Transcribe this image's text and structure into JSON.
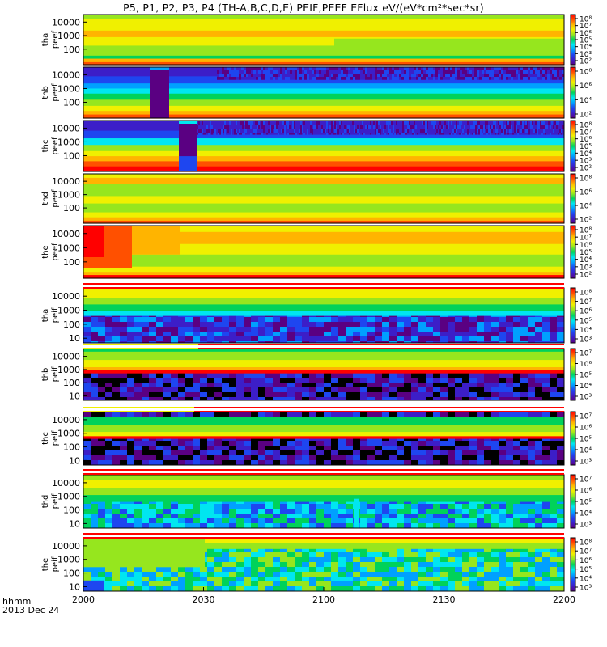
{
  "title": "P5, P1, P2, P3, P4 (TH-A,B,C,D,E) PEIF,PEEF EFlux eV/(eV*cm²*sec*sr)",
  "footer": {
    "var_label": "hhmm",
    "date_label": "2013 Dec 24"
  },
  "colormap": [
    "#ffffff",
    "#000000",
    "#5a0082",
    "#3c1ec8",
    "#1e46f0",
    "#00a0ff",
    "#00e6f0",
    "#00d25a",
    "#96e61e",
    "#f0f000",
    "#ffb400",
    "#ff5000",
    "#ff0000",
    "#ffffff"
  ],
  "chart_data": {
    "type": "heatmap",
    "x_ticks": [
      "2000",
      "2030",
      "2100",
      "2130",
      "2200"
    ],
    "x_range_minutes": [
      0,
      120
    ],
    "panels": [
      {
        "label": [
          "tha",
          "peef"
        ],
        "y_ticks": [
          "10000",
          "1000",
          "100"
        ],
        "cbar_ticks": [
          "10⁸",
          "10⁷",
          "10⁶",
          "10⁵",
          "10⁴",
          "10³",
          "10²"
        ],
        "cbar_range": [
          2,
          8
        ]
      },
      {
        "label": [
          "thb",
          "peef"
        ],
        "y_ticks": [
          "10000",
          "1000",
          "100"
        ],
        "cbar_ticks": [
          "10⁸",
          "10⁶",
          "10⁴",
          "10²"
        ],
        "cbar_range": [
          2,
          8
        ]
      },
      {
        "label": [
          "thc",
          "peef"
        ],
        "y_ticks": [
          "10000",
          "1000",
          "100"
        ],
        "cbar_ticks": [
          "10⁸",
          "10⁷",
          "10⁶",
          "10⁵",
          "10⁴",
          "10³",
          "10²"
        ],
        "cbar_range": [
          2,
          8
        ]
      },
      {
        "label": [
          "thd",
          "peef"
        ],
        "y_ticks": [
          "10000",
          "1000",
          "100"
        ],
        "cbar_ticks": [
          "10⁸",
          "10⁶",
          "10⁴",
          "10²"
        ],
        "cbar_range": [
          2,
          8
        ]
      },
      {
        "label": [
          "the",
          "peef"
        ],
        "y_ticks": [
          "10000",
          "1000",
          "100"
        ],
        "cbar_ticks": [
          "10⁸",
          "10⁷",
          "10⁶",
          "10⁵",
          "10⁴",
          "10³",
          "10²"
        ],
        "cbar_range": [
          2,
          8
        ]
      },
      {
        "label": [
          "tha",
          "peif"
        ],
        "y_ticks": [
          "10000",
          "1000",
          "100",
          "10"
        ],
        "cbar_ticks": [
          "10⁸",
          "10⁷",
          "10⁶",
          "10⁵",
          "10⁴",
          "10³"
        ],
        "cbar_range": [
          3,
          8
        ]
      },
      {
        "label": [
          "thb",
          "peif"
        ],
        "y_ticks": [
          "10000",
          "1000",
          "100",
          "10"
        ],
        "cbar_ticks": [
          "10⁷",
          "10⁶",
          "10⁵",
          "10⁴",
          "10³"
        ],
        "cbar_range": [
          3,
          7
        ]
      },
      {
        "label": [
          "thc",
          "peif"
        ],
        "y_ticks": [
          "10000",
          "1000",
          "100",
          "10"
        ],
        "cbar_ticks": [
          "10⁷",
          "10⁶",
          "10⁵",
          "10⁴",
          "10³"
        ],
        "cbar_range": [
          3,
          7
        ]
      },
      {
        "label": [
          "thd",
          "peif"
        ],
        "y_ticks": [
          "10000",
          "1000",
          "100",
          "10"
        ],
        "cbar_ticks": [
          "10⁷",
          "10⁶",
          "10⁵",
          "10⁴",
          "10³"
        ],
        "cbar_range": [
          3,
          7
        ]
      },
      {
        "label": [
          "the",
          "peif"
        ],
        "y_ticks": [
          "10000",
          "1000",
          "100",
          "10"
        ],
        "cbar_ticks": [
          "10⁸",
          "10⁷",
          "10⁶",
          "10⁵",
          "10⁴",
          "10³"
        ],
        "cbar_range": [
          3,
          8
        ]
      }
    ]
  }
}
